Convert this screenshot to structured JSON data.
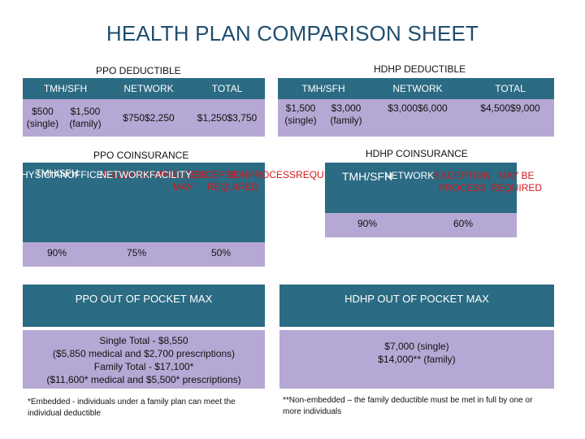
{
  "title": "HEALTH PLAN COMPARISON SHEET",
  "ppo_deductible": {
    "heading": "PPO DEDUCTIBLE",
    "headers": [
      "TMH/SFH",
      "NETWORK",
      "TOTAL"
    ],
    "values": [
      [
        "$500 (single)",
        "$1,500 (family)"
      ],
      [
        "$750",
        "$2,250"
      ],
      [
        "$1,250",
        "$3,750"
      ]
    ]
  },
  "hdhp_deductible": {
    "heading": "HDHP DEDUCTIBLE",
    "headers": [
      "TMH/SFH",
      "NETWORK",
      "TOTAL"
    ],
    "values": [
      [
        "$1,500 (single)",
        "$3,000 (family)"
      ],
      [
        "$3,000",
        "$6,000"
      ],
      [
        "$4,500",
        "$9,000"
      ]
    ]
  },
  "ppo_coinsurance": {
    "heading": "PPO COINSURANCE",
    "col1_header": [
      "TMH/",
      "SFH"
    ],
    "col2_header": [
      "PHYSICIAN",
      "OFFICE"
    ],
    "col2_note": [
      "EXCEPTION",
      "PROCESS MAY",
      "BE REQUIRED"
    ],
    "col3_header": [
      "NETWORK",
      "FACILITY"
    ],
    "col3_note": [
      "EXCEPTION",
      "PROCESS",
      "REQUIRED"
    ],
    "values": [
      "90%",
      "75%",
      "50%"
    ]
  },
  "hdhp_coinsurance": {
    "heading": "HDHP COINSURANCE",
    "col1_header": "TMH/SFH",
    "col2_header": "NETWORK",
    "col2_note": [
      "EXCEPTION PROCESS",
      "MAY BE REQUIRED"
    ],
    "values": [
      "90%",
      "60%"
    ]
  },
  "ppo_oop": {
    "heading": "PPO OUT OF POCKET MAX",
    "lines": [
      "Single Total - $8,550",
      "($5,850 medical and $2,700 prescriptions)",
      "Family Total - $17,100*",
      "($11,600* medical and $5,500* prescriptions)"
    ],
    "footnote": "*Embedded -  individuals under a family plan can meet the individual deductible"
  },
  "hdhp_oop": {
    "heading": "HDHP OUT OF POCKET MAX",
    "lines": [
      "$7,000 (single)",
      "$14,000** (family)"
    ],
    "footnote": "**Non-embedded – the family deductible must be met in full by one or more individuals"
  }
}
